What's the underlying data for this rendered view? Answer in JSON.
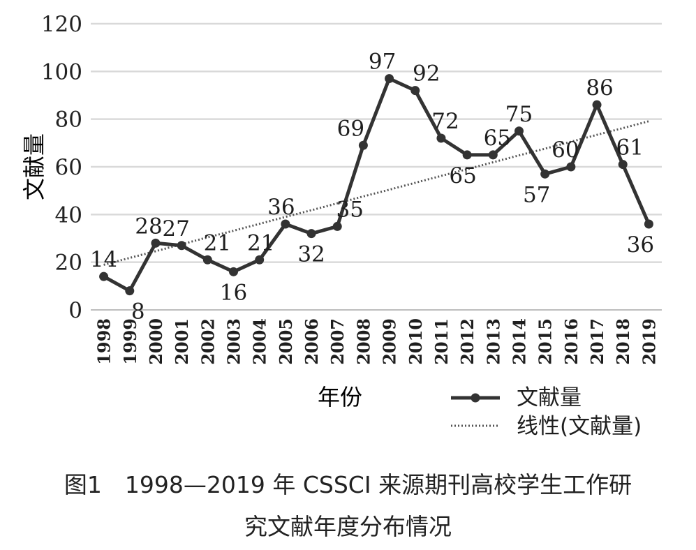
{
  "chart_data": {
    "type": "line",
    "title": "",
    "xlabel": "年份",
    "ylabel": "文献量",
    "ylim": [
      0,
      120
    ],
    "yticks": [
      0,
      20,
      40,
      60,
      80,
      100,
      120
    ],
    "grid": true,
    "legend_position": "bottom-right",
    "x": [
      "1998",
      "1999",
      "2000",
      "2001",
      "2002",
      "2003",
      "2004",
      "2005",
      "2006",
      "2007",
      "2008",
      "2009",
      "2010",
      "2011",
      "2012",
      "2013",
      "2014",
      "2015",
      "2016",
      "2017",
      "2018",
      "2019"
    ],
    "series": [
      {
        "name": "文献量",
        "values": [
          14,
          8,
          28,
          27,
          21,
          16,
          21,
          36,
          32,
          35,
          69,
          97,
          92,
          72,
          65,
          65,
          75,
          57,
          60,
          86,
          61,
          36
        ],
        "color": "#333333",
        "style": "solid-with-markers",
        "labels_shown": true
      },
      {
        "name": "线性(文献量)",
        "kind": "linear-trendline",
        "values": [
          18.9,
          21.8,
          24.6,
          27.5,
          30.4,
          33.2,
          36.1,
          39.0,
          41.8,
          44.7,
          47.6,
          50.4,
          53.3,
          56.2,
          59.0,
          61.9,
          64.8,
          67.6,
          70.5,
          73.4,
          76.2,
          79.1
        ],
        "color": "#555555",
        "style": "dotted",
        "labels_shown": false
      }
    ]
  },
  "legend": {
    "items": [
      {
        "label": "文献量"
      },
      {
        "label": "线性(文献量)"
      }
    ]
  },
  "caption": {
    "line1": "图1　1998—2019 年 CSSCI 来源期刊高校学生工作研",
    "line2": "究文献年度分布情况"
  }
}
